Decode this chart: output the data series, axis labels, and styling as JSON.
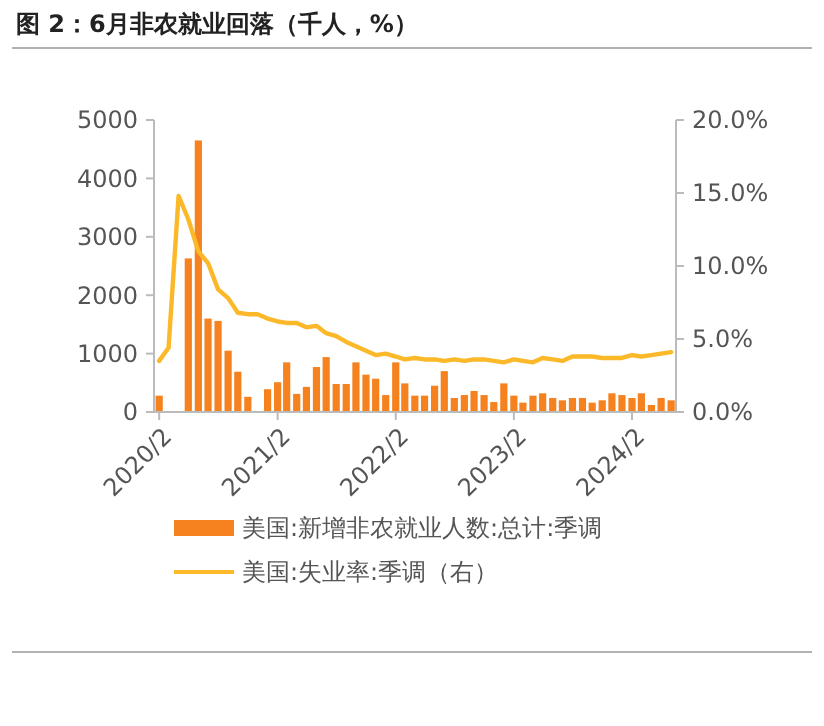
{
  "chart_data": {
    "type": "bar",
    "title": "图 2：6月非农就业回落（千人，%）",
    "x": [
      "2020-02",
      "2020-03",
      "2020-04",
      "2020-05",
      "2020-06",
      "2020-07",
      "2020-08",
      "2020-09",
      "2020-10",
      "2020-11",
      "2020-12",
      "2021-01",
      "2021-02",
      "2021-03",
      "2021-04",
      "2021-05",
      "2021-06",
      "2021-07",
      "2021-08",
      "2021-09",
      "2021-10",
      "2021-11",
      "2021-12",
      "2022-01",
      "2022-02",
      "2022-03",
      "2022-04",
      "2022-05",
      "2022-06",
      "2022-07",
      "2022-08",
      "2022-09",
      "2022-10",
      "2022-11",
      "2022-12",
      "2023-01",
      "2023-02",
      "2023-03",
      "2023-04",
      "2023-05",
      "2023-06",
      "2023-07",
      "2023-08",
      "2023-09",
      "2023-10",
      "2023-11",
      "2023-12",
      "2024-01",
      "2024-02",
      "2024-03",
      "2024-04",
      "2024-05",
      "2024-06"
    ],
    "series": [
      {
        "name": "美国:新增非农就业人数:总计:季调",
        "color": "#f5821f",
        "values": [
          280,
          null,
          null,
          2630,
          4650,
          1600,
          1560,
          1050,
          690,
          260,
          null,
          390,
          510,
          850,
          310,
          430,
          770,
          940,
          480,
          480,
          850,
          640,
          570,
          290,
          850,
          490,
          280,
          280,
          450,
          700,
          240,
          290,
          360,
          290,
          170,
          490,
          280,
          160,
          280,
          320,
          240,
          200,
          240,
          240,
          160,
          200,
          320,
          290,
          240,
          320,
          120,
          240,
          200
        ]
      },
      {
        "name": "美国:失业率:季调（右）",
        "type": "line",
        "axis": "y2",
        "color": "#fbb829",
        "values": [
          3.5,
          4.4,
          14.8,
          13.2,
          11.0,
          10.2,
          8.4,
          7.8,
          6.8,
          6.7,
          6.7,
          6.4,
          6.2,
          6.1,
          6.1,
          5.8,
          5.9,
          5.4,
          5.2,
          4.8,
          4.5,
          4.2,
          3.9,
          4.0,
          3.8,
          3.6,
          3.7,
          3.6,
          3.6,
          3.5,
          3.6,
          3.5,
          3.6,
          3.6,
          3.5,
          3.4,
          3.6,
          3.5,
          3.4,
          3.7,
          3.6,
          3.5,
          3.8,
          3.8,
          3.8,
          3.7,
          3.7,
          3.7,
          3.9,
          3.8,
          3.9,
          4.0,
          4.1
        ]
      }
    ],
    "xlim": [
      "2020-01-16",
      "2024-06-16"
    ],
    "xticks": [
      {
        "value": "2020-02",
        "label": "2020/2"
      },
      {
        "value": "2021-02",
        "label": "2021/2"
      },
      {
        "value": "2022-02",
        "label": "2022/2"
      },
      {
        "value": "2023-02",
        "label": "2023/2"
      },
      {
        "value": "2024-02",
        "label": "2024/2"
      }
    ],
    "ylim": [
      0,
      5000
    ],
    "yticks": [
      0,
      1000,
      2000,
      3000,
      4000,
      5000
    ],
    "y2lim": [
      0,
      20
    ],
    "y2ticks": [
      {
        "value": 0,
        "label": "0.0%"
      },
      {
        "value": 5,
        "label": "5.0%"
      },
      {
        "value": 10,
        "label": "10.0%"
      },
      {
        "value": 15,
        "label": "15.0%"
      },
      {
        "value": 20,
        "label": "20.0%"
      }
    ],
    "grid": false,
    "legend": "bottom",
    "marker": "none",
    "line_style": "solid"
  }
}
